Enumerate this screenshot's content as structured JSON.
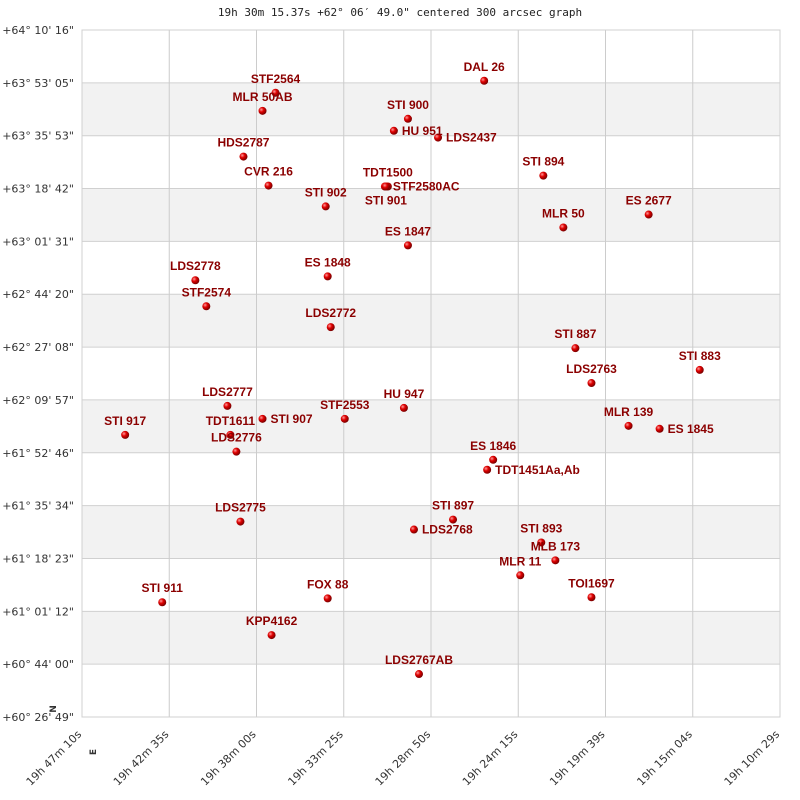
{
  "title": "19h 30m 15.37s +62° 06′ 49.0\" centered 300 arcsec graph",
  "chart_data": {
    "type": "scatter",
    "title": "19h 30m 15.37s +62° 06′ 49.0\" centered 300 arcsec graph",
    "x_axis": {
      "quantity": "RA (deg)",
      "range": [
        296.7917,
        287.625
      ],
      "reversed": true,
      "tick_values": [
        296.7917,
        295.6458,
        294.5,
        293.3542,
        292.2083,
        291.0625,
        289.9167,
        288.7708,
        287.625
      ],
      "tick_labels": [
        "19h 47m 10s",
        "19h 42m 35s",
        "19h 38m 00s",
        "19h 33m 25s",
        "19h 28m 50s",
        "19h 24m 15s",
        "19h 19m 39s",
        "19h 15m 04s",
        "19h 10m 29s"
      ]
    },
    "y_axis": {
      "quantity": "Dec (deg)",
      "range": [
        60.4468,
        64.1711
      ],
      "tick_values": [
        64.1711,
        63.8847,
        63.5983,
        63.3119,
        63.0256,
        62.7392,
        62.4528,
        62.1664,
        61.88,
        61.5936,
        61.3072,
        61.0208,
        60.7345,
        60.4481
      ],
      "tick_labels": [
        "+64° 10' 16\"",
        "+63° 53' 05\"",
        "+63° 35' 53\"",
        "+63° 18' 42\"",
        "+63° 01' 31\"",
        "+62° 44' 20\"",
        "+62° 27' 08\"",
        "+62° 09' 57\"",
        "+61° 52' 46\"",
        "+61° 35' 34\"",
        "+61° 18' 23\"",
        "+61° 01' 12\"",
        "+60° 44' 00\"",
        "+60° 26' 49\""
      ]
    },
    "grid": true,
    "compass": {
      "north": "N",
      "east": "E"
    },
    "marker_color": "#d40000",
    "label_color": "#8b0000",
    "points": [
      {
        "name": "STF2564",
        "ra": 294.25,
        "dec": 63.831
      },
      {
        "name": "MLR  50AB",
        "ra": 294.421,
        "dec": 63.733
      },
      {
        "name": "HDS2787",
        "ra": 294.671,
        "dec": 63.485
      },
      {
        "name": "CVR 216",
        "ra": 294.342,
        "dec": 63.328
      },
      {
        "name": "STI 902",
        "ra": 293.591,
        "dec": 63.215
      },
      {
        "name": "STI 900",
        "ra": 292.511,
        "dec": 63.69
      },
      {
        "name": "HU  951",
        "ra": 292.696,
        "dec": 63.625
      },
      {
        "name": "LDS2437",
        "ra": 292.116,
        "dec": 63.588
      },
      {
        "name": "TDT1500",
        "ra": 292.775,
        "dec": 63.323
      },
      {
        "name": "STF2580AC",
        "ra": 292.814,
        "dec": 63.323
      },
      {
        "name": "STI 901",
        "ra": 292.8,
        "dec": 63.323
      },
      {
        "name": "DAL  26",
        "ra": 291.51,
        "dec": 63.896
      },
      {
        "name": "STI 894",
        "ra": 290.733,
        "dec": 63.382
      },
      {
        "name": "MLR  50",
        "ra": 290.47,
        "dec": 63.101
      },
      {
        "name": "ES 2677",
        "ra": 289.35,
        "dec": 63.171
      },
      {
        "name": "ES 1847",
        "ra": 292.511,
        "dec": 63.004
      },
      {
        "name": "LDS2778",
        "ra": 295.303,
        "dec": 62.815
      },
      {
        "name": "STF2574",
        "ra": 295.159,
        "dec": 62.674
      },
      {
        "name": "ES 1848",
        "ra": 293.565,
        "dec": 62.836
      },
      {
        "name": "LDS2772",
        "ra": 293.525,
        "dec": 62.561
      },
      {
        "name": "STI 887",
        "ra": 290.312,
        "dec": 62.447
      },
      {
        "name": "STI 883",
        "ra": 288.679,
        "dec": 62.329
      },
      {
        "name": "LDS2763",
        "ra": 290.101,
        "dec": 62.258
      },
      {
        "name": "LDS2777",
        "ra": 294.882,
        "dec": 62.134
      },
      {
        "name": "STI 907",
        "ra": 294.421,
        "dec": 62.064
      },
      {
        "name": "TDT1611",
        "ra": 294.843,
        "dec": 61.977
      },
      {
        "name": "LDS2776",
        "ra": 294.764,
        "dec": 61.886
      },
      {
        "name": "STF2553",
        "ra": 293.341,
        "dec": 62.064
      },
      {
        "name": "HU  947",
        "ra": 292.564,
        "dec": 62.123
      },
      {
        "name": "STI 917",
        "ra": 296.225,
        "dec": 61.977
      },
      {
        "name": "MLR 139",
        "ra": 289.614,
        "dec": 62.026
      },
      {
        "name": "ES 1845",
        "ra": 289.206,
        "dec": 62.01
      },
      {
        "name": "ES 1846",
        "ra": 291.392,
        "dec": 61.842
      },
      {
        "name": "TDT1451Aa,Ab",
        "ra": 291.471,
        "dec": 61.788
      },
      {
        "name": "STI 897",
        "ra": 291.919,
        "dec": 61.518
      },
      {
        "name": "LDS2768",
        "ra": 292.432,
        "dec": 61.464
      },
      {
        "name": "LDS2775",
        "ra": 294.711,
        "dec": 61.507
      },
      {
        "name": "STI 893",
        "ra": 290.76,
        "dec": 61.394
      },
      {
        "name": "MLB 173",
        "ra": 290.575,
        "dec": 61.297
      },
      {
        "name": "MLR  11",
        "ra": 291.036,
        "dec": 61.216
      },
      {
        "name": "TOI1697",
        "ra": 290.101,
        "dec": 61.097
      },
      {
        "name": "STI 911",
        "ra": 295.738,
        "dec": 61.07
      },
      {
        "name": "FOX  88",
        "ra": 293.565,
        "dec": 61.091
      },
      {
        "name": "KPP4162",
        "ra": 294.302,
        "dec": 60.892
      },
      {
        "name": "LDS2767AB",
        "ra": 292.366,
        "dec": 60.681
      }
    ]
  }
}
